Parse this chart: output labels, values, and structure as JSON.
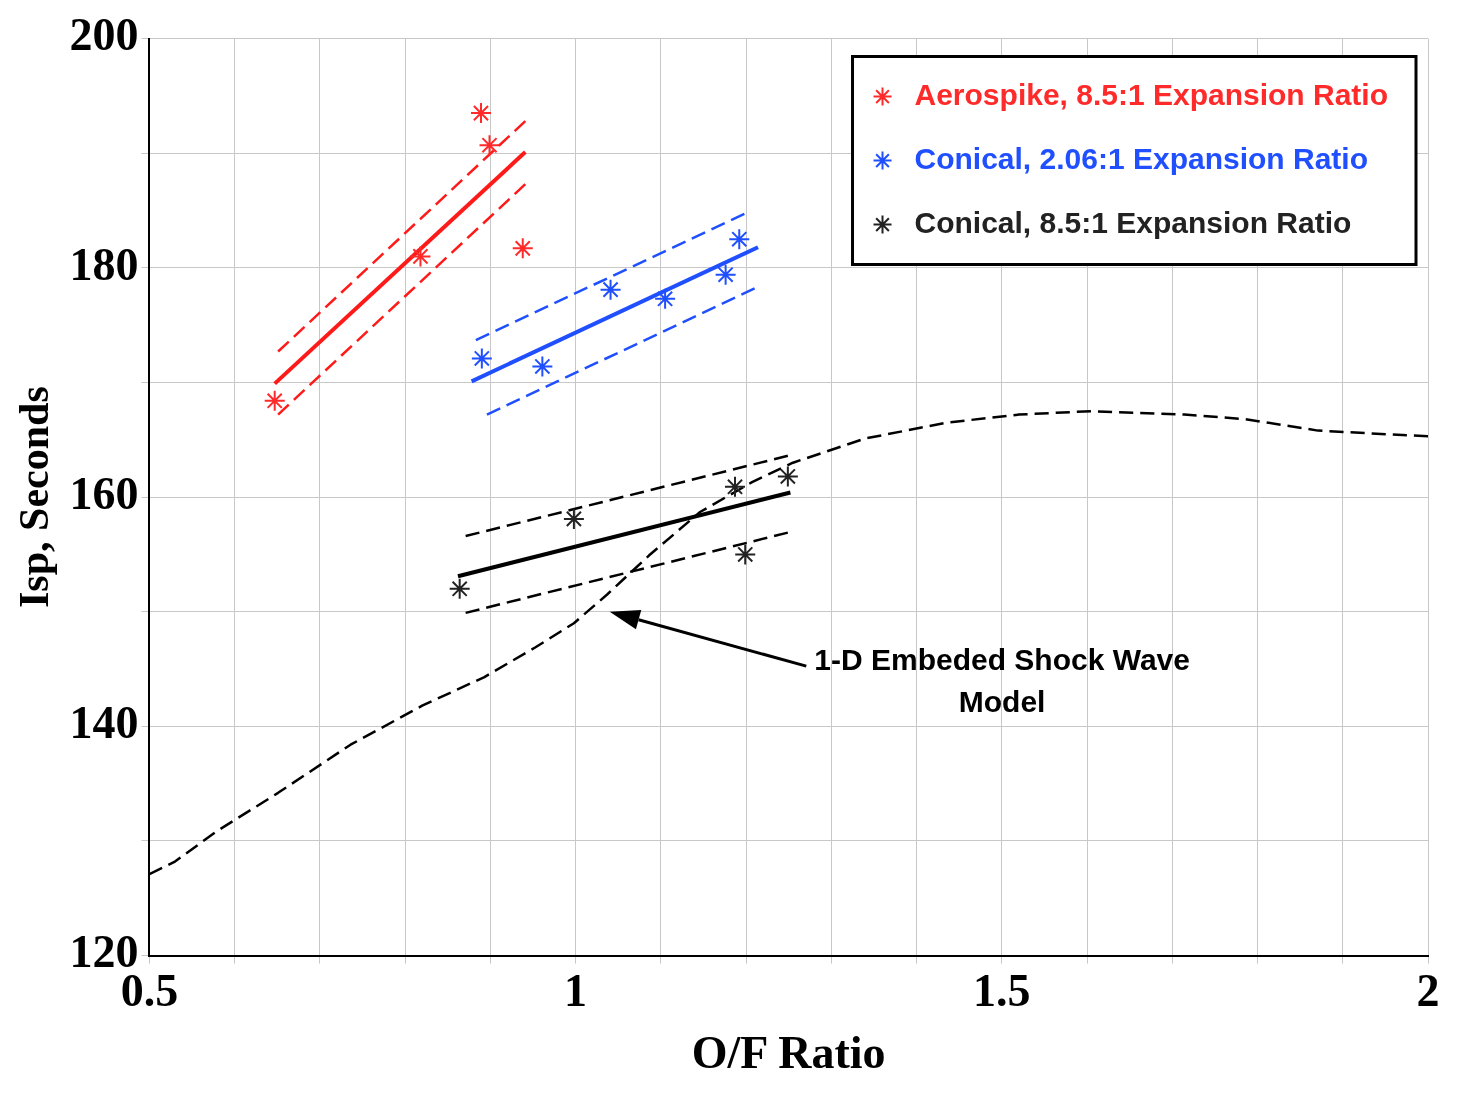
{
  "chart_data": {
    "type": "scatter",
    "xlabel": "O/F Ratio",
    "ylabel": "Isp, Seconds",
    "xlim": [
      0.5,
      2
    ],
    "ylim": [
      120,
      200
    ],
    "xticks": [
      0.5,
      {
        "value": 0.6,
        "label": null
      },
      {
        "value": 0.7,
        "label": null
      },
      {
        "value": 0.8,
        "label": null
      },
      {
        "value": 0.9,
        "label": null
      },
      1,
      {
        "value": 1.1,
        "label": null
      },
      {
        "value": 1.2,
        "label": null
      },
      {
        "value": 1.3,
        "label": null
      },
      {
        "value": 1.4,
        "label": null
      },
      1.5,
      {
        "value": 1.6,
        "label": null
      },
      {
        "value": 1.7,
        "label": null
      },
      {
        "value": 1.8,
        "label": null
      },
      {
        "value": 1.9,
        "label": null
      },
      2
    ],
    "yticks": [
      120,
      {
        "value": 130,
        "label": null
      },
      140,
      {
        "value": 150,
        "label": null
      },
      160,
      {
        "value": 170,
        "label": null
      },
      180,
      {
        "value": 190,
        "label": null
      },
      200
    ],
    "grid": true,
    "legend": "top right",
    "annotations": [
      "1-D Embeded Shock Wave Model"
    ],
    "series": [
      {
        "name": "Aerospike, 8.5:1 Expansion Ratio",
        "type": "scatter",
        "marker": "cross",
        "color": "#ff2a2a",
        "x": [
          0.647,
          0.889,
          0.899,
          0.818,
          0.938
        ],
        "values": [
          168.4,
          193.5,
          190.7,
          181.0,
          181.7
        ]
      },
      {
        "name": "Conical, 2.06:1 Expansion Ratio",
        "type": "scatter",
        "marker": "cross",
        "color": "#1f4fff",
        "x": [
          0.89,
          0.961,
          1.041,
          1.105,
          1.176,
          1.192
        ],
        "values": [
          172.1,
          171.4,
          178.1,
          177.3,
          179.4,
          182.5
        ]
      },
      {
        "name": "Conical, 8.5:1 Expansion Ratio",
        "type": "scatter",
        "marker": "cross",
        "color": "#222222",
        "x": [
          0.864,
          0.998,
          1.187,
          1.199,
          1.249
        ],
        "values": [
          152.0,
          158.1,
          160.9,
          155.0,
          161.8
        ]
      },
      {
        "type": "line",
        "line_style": "solid",
        "color": "#ff1a1a",
        "x": [
          0.647,
          0.941
        ],
        "values": [
          169.9,
          190.1
        ]
      },
      {
        "type": "line",
        "line_style": "dashed",
        "color": "#ff1a1a",
        "x": [
          0.651,
          0.941
        ],
        "values": [
          172.7,
          192.8
        ]
      },
      {
        "type": "line",
        "line_style": "dashed",
        "color": "#ff1a1a",
        "x": [
          0.651,
          0.941
        ],
        "values": [
          167.2,
          187.3
        ]
      },
      {
        "type": "line",
        "line_style": "solid",
        "color": "#1f4fff",
        "x": [
          0.878,
          1.214
        ],
        "values": [
          170.1,
          181.8
        ]
      },
      {
        "type": "line",
        "line_style": "dashed",
        "color": "#1f4fff",
        "x": [
          0.883,
          1.198
        ],
        "values": [
          173.7,
          184.7
        ]
      },
      {
        "type": "line",
        "line_style": "dashed",
        "color": "#1f4fff",
        "x": [
          0.896,
          1.21
        ],
        "values": [
          167.2,
          178.2
        ]
      },
      {
        "type": "line",
        "line_style": "solid",
        "color": "#000000",
        "x": [
          0.862,
          1.252
        ],
        "values": [
          153.1,
          160.4
        ]
      },
      {
        "type": "line",
        "line_style": "dashed",
        "color": "#000000",
        "x": [
          0.871,
          1.249
        ],
        "values": [
          156.6,
          163.6
        ]
      },
      {
        "type": "line",
        "line_style": "dashed",
        "color": "#000000",
        "x": [
          0.871,
          1.249
        ],
        "values": [
          149.9,
          156.9
        ]
      },
      {
        "type": "line",
        "line_style": "dashed",
        "color": "#000000",
        "x": [
          0.5,
          0.53,
          0.578,
          0.651,
          0.736,
          0.82,
          0.893,
          0.953,
          0.998,
          1.037,
          1.086,
          1.146,
          1.207,
          1.255,
          1.339,
          1.436,
          1.52,
          1.605,
          1.714,
          1.786,
          1.871,
          2.0
        ],
        "values": [
          127.1,
          128.2,
          130.8,
          134.2,
          138.4,
          141.8,
          144.3,
          146.9,
          149.0,
          151.5,
          154.9,
          158.7,
          161.3,
          163.0,
          165.1,
          166.5,
          167.2,
          167.5,
          167.2,
          166.8,
          165.8,
          165.3
        ]
      }
    ]
  }
}
